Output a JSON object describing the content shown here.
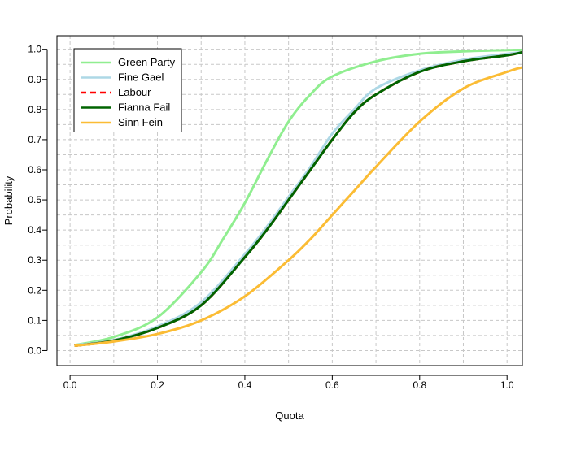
{
  "chart_data": {
    "type": "line",
    "xlabel": "Quota",
    "ylabel": "Probability",
    "xlim": [
      -0.03,
      1.035
    ],
    "ylim": [
      -0.05,
      1.045
    ],
    "x_ticks": [
      0.0,
      0.2,
      0.4,
      0.6,
      0.8,
      1.0
    ],
    "x_tick_labels": [
      "0.0",
      "0.2",
      "0.4",
      "0.6",
      "0.8",
      "1.0"
    ],
    "y_ticks": [
      0.0,
      0.1,
      0.2,
      0.3,
      0.4,
      0.5,
      0.6,
      0.7,
      0.8,
      0.9,
      1.0
    ],
    "y_tick_labels": [
      "0.0",
      "0.1",
      "0.2",
      "0.3",
      "0.4",
      "0.5",
      "0.6",
      "0.7",
      "0.8",
      "0.9",
      "1.0"
    ],
    "grid": true,
    "legend_position": "top-left",
    "series": [
      {
        "name": "Green Party",
        "color": "#90ee90",
        "dash": "solid",
        "x": [
          0.01,
          0.1,
          0.2,
          0.3,
          0.35,
          0.4,
          0.45,
          0.5,
          0.55,
          0.6,
          0.7,
          0.8,
          0.9,
          1.0,
          1.035
        ],
        "y": [
          0.018,
          0.045,
          0.11,
          0.26,
          0.37,
          0.49,
          0.63,
          0.76,
          0.85,
          0.91,
          0.96,
          0.985,
          0.993,
          0.997,
          0.998
        ]
      },
      {
        "name": "Fine Gael",
        "color": "#add8e6",
        "dash": "solid",
        "x": [
          0.01,
          0.1,
          0.2,
          0.3,
          0.4,
          0.45,
          0.5,
          0.55,
          0.6,
          0.65,
          0.7,
          0.8,
          0.9,
          1.0,
          1.035
        ],
        "y": [
          0.018,
          0.035,
          0.08,
          0.16,
          0.32,
          0.41,
          0.51,
          0.61,
          0.72,
          0.8,
          0.87,
          0.93,
          0.965,
          0.985,
          0.99
        ]
      },
      {
        "name": "Labour",
        "color": "#ff0000",
        "dash": "dashed",
        "x": [
          0.01,
          0.1,
          0.2,
          0.3,
          0.4,
          0.45,
          0.5,
          0.55,
          0.6,
          0.65,
          0.7,
          0.8,
          0.9,
          1.0,
          1.035
        ],
        "y": [
          0.016,
          0.033,
          0.075,
          0.15,
          0.31,
          0.4,
          0.5,
          0.6,
          0.7,
          0.79,
          0.85,
          0.925,
          0.96,
          0.98,
          0.99
        ]
      },
      {
        "name": "Fianna Fail",
        "color": "#006400",
        "dash": "solid",
        "x": [
          0.01,
          0.1,
          0.2,
          0.3,
          0.4,
          0.45,
          0.5,
          0.55,
          0.6,
          0.65,
          0.7,
          0.8,
          0.9,
          1.0,
          1.035
        ],
        "y": [
          0.016,
          0.033,
          0.075,
          0.15,
          0.31,
          0.4,
          0.5,
          0.6,
          0.7,
          0.79,
          0.85,
          0.925,
          0.96,
          0.98,
          0.99
        ]
      },
      {
        "name": "Sinn Fein",
        "color": "#fbbc34",
        "dash": "solid",
        "x": [
          0.01,
          0.1,
          0.2,
          0.3,
          0.4,
          0.5,
          0.55,
          0.6,
          0.65,
          0.7,
          0.8,
          0.9,
          1.0,
          1.035
        ],
        "y": [
          0.016,
          0.03,
          0.055,
          0.1,
          0.18,
          0.3,
          0.37,
          0.45,
          0.53,
          0.61,
          0.76,
          0.87,
          0.925,
          0.94
        ]
      }
    ]
  }
}
